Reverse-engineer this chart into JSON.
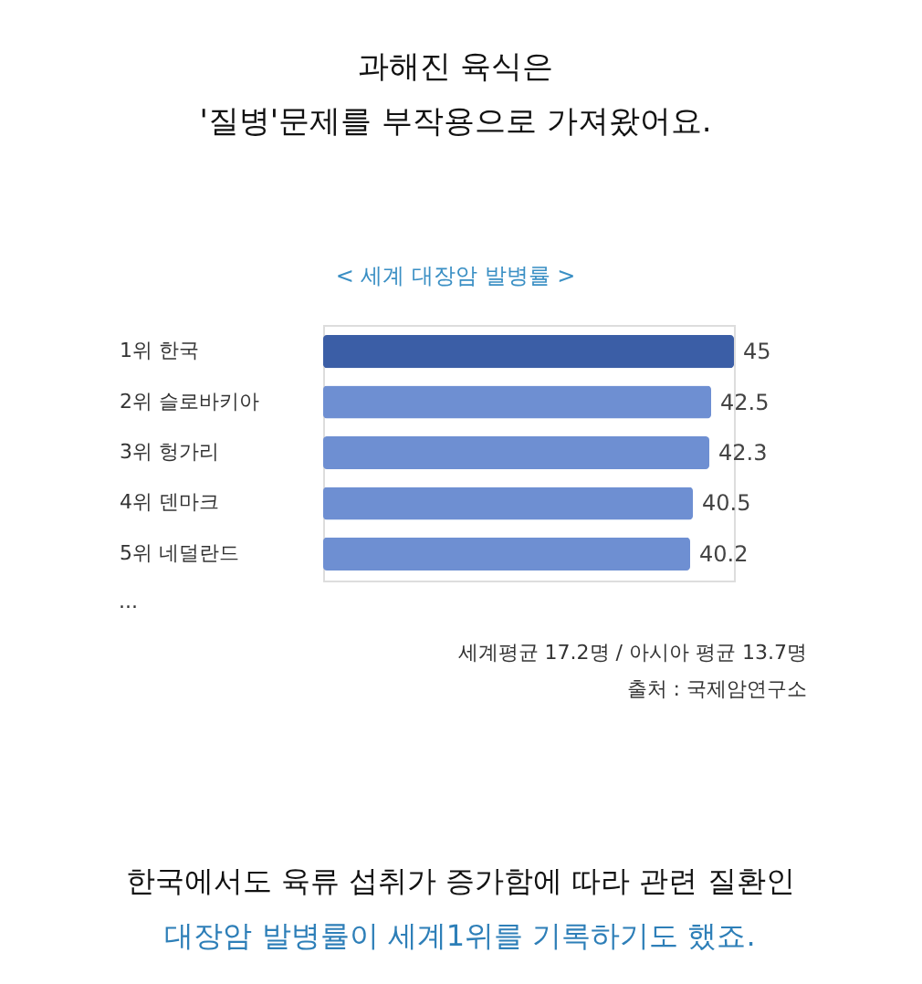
{
  "chart_data": {
    "type": "bar",
    "orientation": "horizontal",
    "title": [
      "과해진 육식은",
      "'질병'문제를 부작용으로 가져왔어요."
    ],
    "subtitle": "< 세계 대장암 발병률 >",
    "categories": [
      "1위 한국",
      "2위 슬로바키아",
      "3위 헝가리",
      "4위 덴마크",
      "5위 네덜란드"
    ],
    "values": [
      45,
      42.5,
      42.3,
      40.5,
      40.2
    ],
    "colors": [
      "#3b5ea6",
      "#6e8fd2",
      "#6e8fd2",
      "#6e8fd2",
      "#6e8fd2"
    ],
    "data_labels": true,
    "annotations": [
      "...",
      "세계평균 17.2명 / 아시아 평균 13.7명",
      "출처 : 국제암연구소",
      "한국에서도 육류 섭취가 증가함에 따라 관련 질환인",
      "대장암 발병률이 세계1위를 기록하기도 했죠."
    ]
  }
}
